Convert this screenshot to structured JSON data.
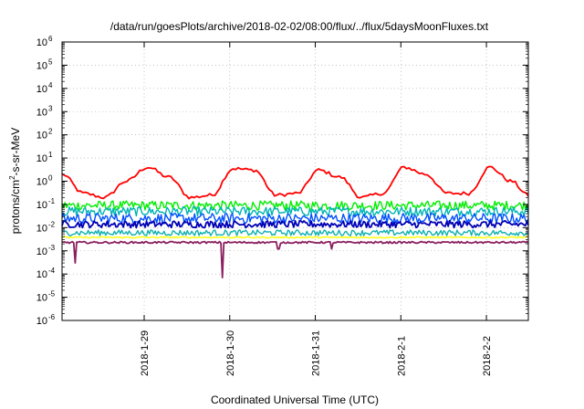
{
  "chart_data": {
    "type": "line",
    "title": "/data/run/goesPlots/archive/2018-02-02/08:00/flux/../flux/5daysMoonFluxes.txt",
    "xlabel": "Coordinated Universal Time (UTC)",
    "ylabel": "protons/cm2-s-sr-MeV",
    "ylabel_parts": {
      "pre": "protons/cm",
      "sup": "2",
      "post": "-s-sr-MeV"
    },
    "yscale": "log",
    "ylim": [
      1e-06,
      1000000.0
    ],
    "xlim": [
      0,
      5.45
    ],
    "y_ticks": [
      {
        "exp": -6,
        "base": "10",
        "sup": "-6"
      },
      {
        "exp": -5,
        "base": "10",
        "sup": "-5"
      },
      {
        "exp": -4,
        "base": "10",
        "sup": "-4"
      },
      {
        "exp": -3,
        "base": "10",
        "sup": "-3"
      },
      {
        "exp": -2,
        "base": "10",
        "sup": "-2"
      },
      {
        "exp": -1,
        "base": "10",
        "sup": "-1"
      },
      {
        "exp": 0,
        "base": "10",
        "sup": "0"
      },
      {
        "exp": 1,
        "base": "10",
        "sup": "1"
      },
      {
        "exp": 2,
        "base": "10",
        "sup": "2"
      },
      {
        "exp": 3,
        "base": "10",
        "sup": "3"
      },
      {
        "exp": 4,
        "base": "10",
        "sup": "4"
      },
      {
        "exp": 5,
        "base": "10",
        "sup": "5"
      },
      {
        "exp": 6,
        "base": "10",
        "sup": "6"
      }
    ],
    "x_ticks": [
      {
        "x": 0.96,
        "label": "2018-1-29"
      },
      {
        "x": 1.96,
        "label": "2018-1-30"
      },
      {
        "x": 2.96,
        "label": "2018-1-31"
      },
      {
        "x": 3.96,
        "label": "2018-2-1"
      },
      {
        "x": 4.96,
        "label": "2018-2-2"
      }
    ],
    "grid": true,
    "series": [
      {
        "color": "#ff0000",
        "values_x": [
          0,
          0.25,
          0.5,
          0.75,
          1.0,
          1.25,
          1.5,
          1.75,
          2.0,
          2.25,
          2.5,
          2.75,
          3.0,
          3.25,
          3.5,
          3.75,
          4.0,
          4.25,
          4.5,
          4.75,
          5.0,
          5.25,
          5.45
        ],
        "values": [
          2.0,
          0.3,
          0.2,
          1.0,
          4.0,
          1.5,
          0.2,
          0.25,
          3.5,
          3.0,
          0.25,
          0.3,
          3.0,
          1.5,
          0.2,
          0.3,
          4.0,
          2.0,
          0.3,
          0.3,
          4.0,
          1.0,
          0.25
        ]
      },
      {
        "color": "#00ee00",
        "level": 0.09,
        "spread": 0.4
      },
      {
        "color": "#00b4b4",
        "level": 0.05,
        "spread": 0.4
      },
      {
        "color": "#0050ff",
        "level": 0.025,
        "spread": 0.45
      },
      {
        "color": "#0000b4",
        "level": 0.014,
        "spread": 0.3
      },
      {
        "color": "#10b0b0",
        "level": 0.006,
        "spread": 0.25
      },
      {
        "color": "#ffff00",
        "level": 0.0038,
        "spread": 0.06
      },
      {
        "color": "#8b2060",
        "level": 0.0023,
        "spread": 0.08,
        "dips": [
          {
            "x": 0.15,
            "y": 0.0003
          },
          {
            "x": 1.87,
            "y": 7e-05
          },
          {
            "x": 2.53,
            "y": 0.0012
          },
          {
            "x": 3.15,
            "y": 0.0012
          }
        ]
      }
    ]
  }
}
